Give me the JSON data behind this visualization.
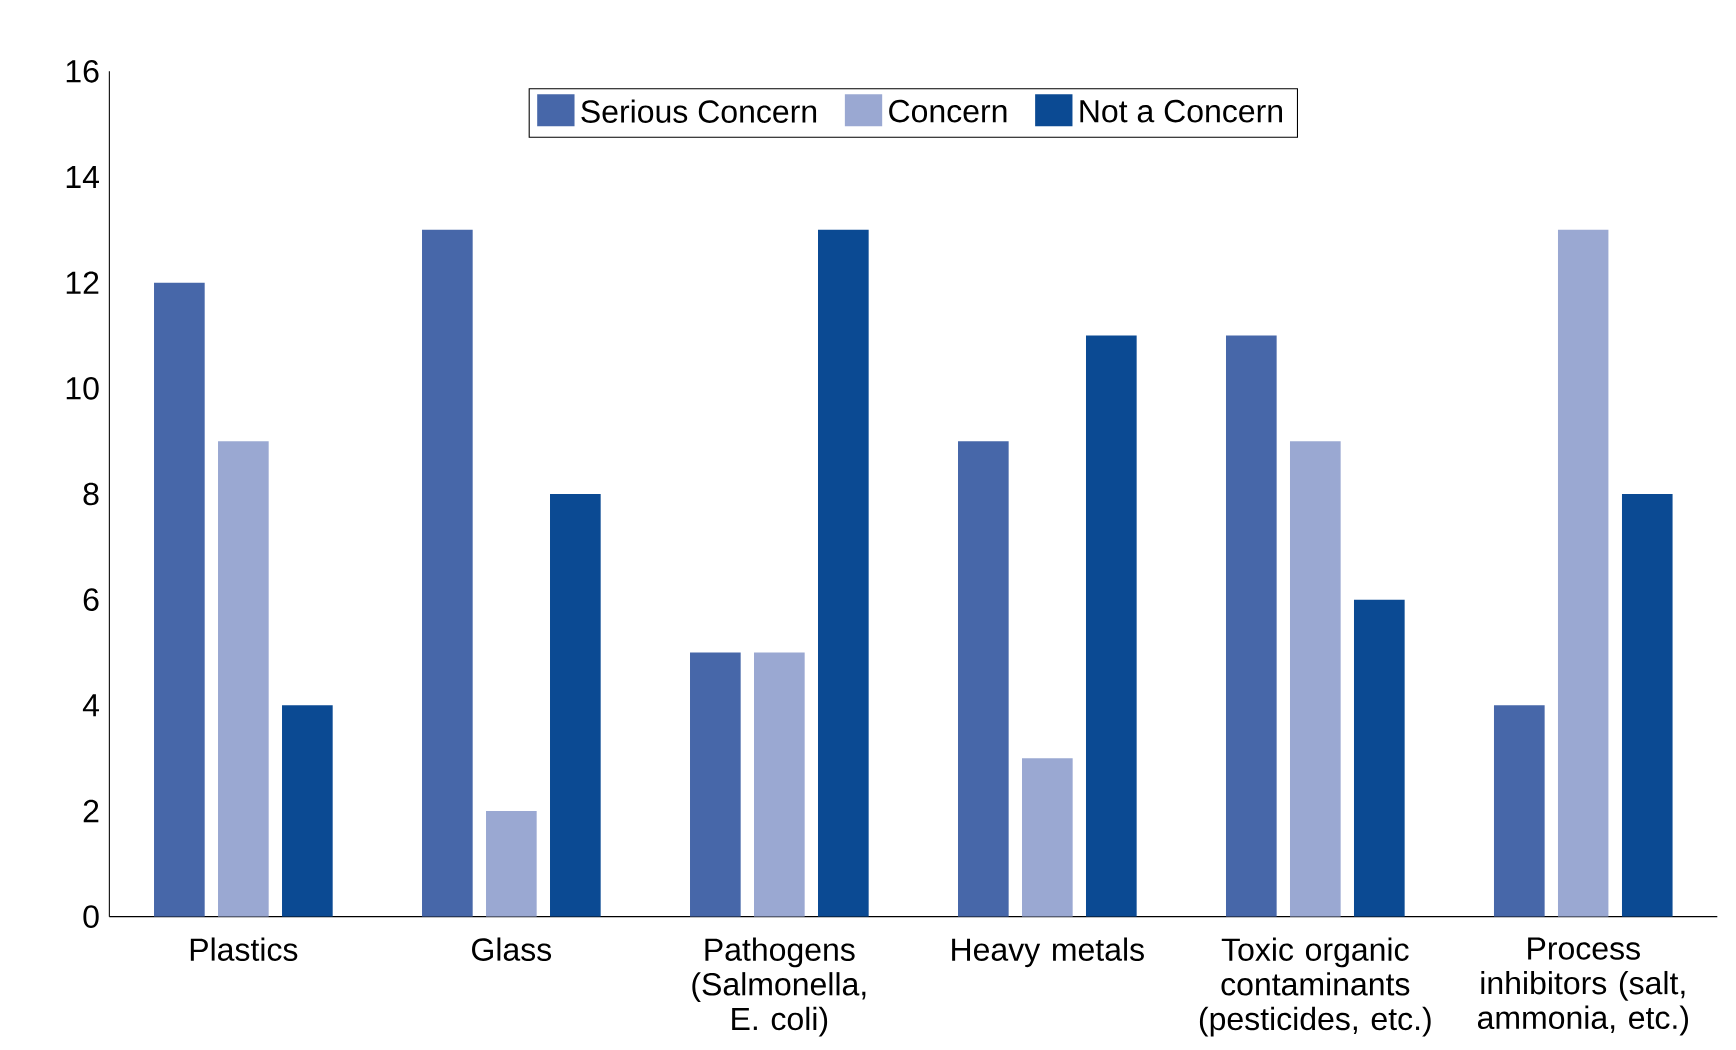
{
  "chart_data": {
    "type": "bar",
    "categories": [
      "Plastics",
      "Glass",
      "Pathogens (Salmonella, E. coli)",
      "Heavy metals",
      "Toxic organic contaminants (pesticides, etc.)",
      "Process inhibitors (salt, ammonia, etc.)"
    ],
    "series": [
      {
        "name": "Serious Concern",
        "color": "#4767a9",
        "values": [
          12,
          13,
          5,
          9,
          11,
          4
        ]
      },
      {
        "name": "Concern",
        "color": "#9aa8d2",
        "values": [
          9,
          2,
          5,
          3,
          9,
          13
        ]
      },
      {
        "name": "Not a Concern",
        "color": "#0b4a93",
        "values": [
          4,
          8,
          13,
          11,
          6,
          8
        ]
      }
    ],
    "ylim": [
      0,
      16
    ],
    "yticks": [
      0,
      2,
      4,
      6,
      8,
      10,
      12,
      14,
      16
    ],
    "grid": false,
    "legend": "top"
  }
}
